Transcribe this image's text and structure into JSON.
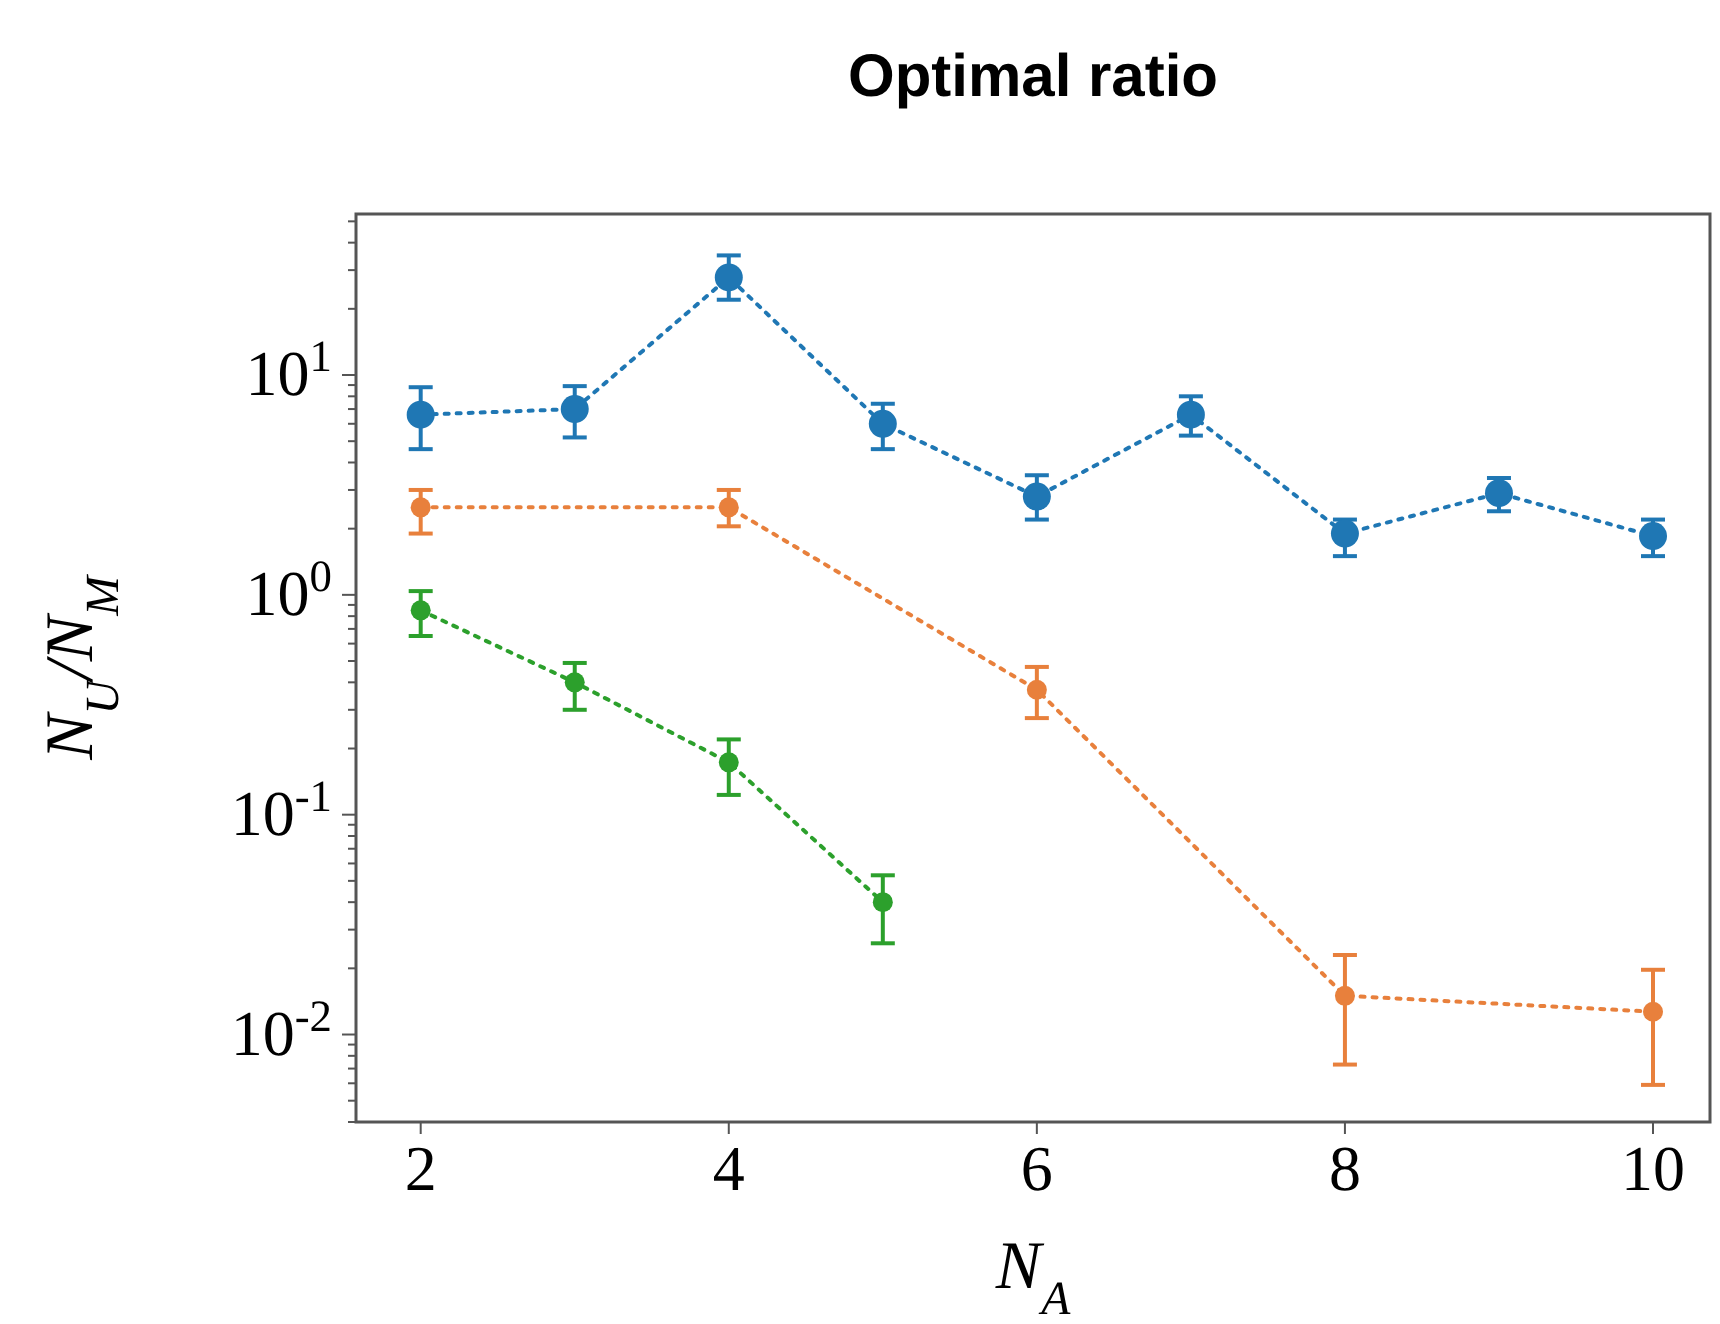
{
  "chart_data": {
    "type": "line",
    "title": "Optimal ratio",
    "xlabel": "N$_{A}$",
    "ylabel": "N$_{U}$/N$_{M}$",
    "log": "y",
    "marker": "circle",
    "line_style": "dotted",
    "grid": false,
    "xlim": [
      1.58,
      10.37
    ],
    "xticks": [
      2,
      4,
      6,
      8,
      10
    ],
    "ylim": [
      0.004,
      54
    ],
    "yticks": [
      {
        "value": 0.01,
        "label": "10$^{-2}$"
      },
      {
        "value": 0.1,
        "label": "10$^{-1}$"
      },
      {
        "value": 1,
        "label": "10$^{0}$"
      },
      {
        "value": 10,
        "label": "10$^{1}$"
      }
    ],
    "series": [
      {
        "color": "#1f77b4",
        "x": [
          2,
          3,
          4,
          5,
          6,
          7,
          8,
          9,
          10
        ],
        "values": [
          6.6,
          7.0,
          27.8,
          6.0,
          2.8,
          6.6,
          1.9,
          2.9,
          1.85
        ],
        "errors": [
          [
            4.6,
            8.8
          ],
          [
            5.2,
            8.9
          ],
          [
            22,
            35
          ],
          [
            4.6,
            7.4
          ],
          [
            2.2,
            3.5
          ],
          [
            5.3,
            8.0
          ],
          [
            1.5,
            2.2
          ],
          [
            2.4,
            3.4
          ],
          [
            1.5,
            2.2
          ]
        ]
      },
      {
        "color": "#e8803c",
        "x": [
          2,
          4,
          6,
          8,
          10
        ],
        "values": [
          2.5,
          2.5,
          0.37,
          0.015,
          0.0127
        ],
        "errors": [
          [
            1.9,
            3.0
          ],
          [
            2.05,
            3.0
          ],
          [
            0.275,
            0.47
          ],
          [
            0.0073,
            0.023
          ],
          [
            0.0059,
            0.0197
          ]
        ]
      },
      {
        "color": "#2ca02c",
        "x": [
          2,
          3,
          4,
          5
        ],
        "values": [
          0.85,
          0.4,
          0.173,
          0.04
        ],
        "errors": [
          [
            0.65,
            1.04
          ],
          [
            0.3,
            0.49
          ],
          [
            0.123,
            0.22
          ],
          [
            0.026,
            0.053
          ]
        ]
      }
    ]
  }
}
